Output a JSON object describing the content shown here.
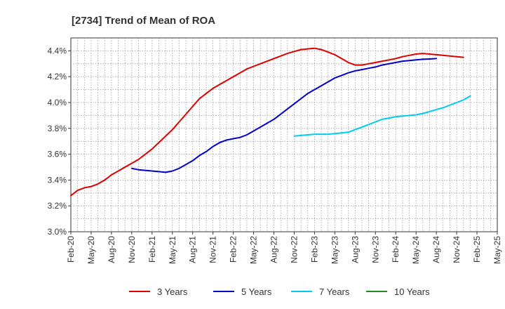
{
  "chart_data": {
    "type": "line",
    "title": "[2734]  Trend of Mean of ROA",
    "xlabel": "",
    "ylabel": "",
    "x_ticks": [
      "Feb-20",
      "May-20",
      "Aug-20",
      "Nov-20",
      "Feb-21",
      "May-21",
      "Aug-21",
      "Nov-21",
      "Feb-22",
      "May-22",
      "Aug-22",
      "Nov-22",
      "Feb-23",
      "May-23",
      "Aug-23",
      "Nov-23",
      "Feb-24",
      "May-24",
      "Aug-24",
      "Nov-24",
      "Feb-25",
      "May-25"
    ],
    "ylim": [
      3.0,
      4.5
    ],
    "y_ticks": [
      "3.0%",
      "3.2%",
      "3.4%",
      "3.6%",
      "3.8%",
      "4.0%",
      "4.2%",
      "4.4%"
    ],
    "y_tick_values": [
      3.0,
      3.2,
      3.4,
      3.6,
      3.8,
      4.0,
      4.2,
      4.4
    ],
    "grid": true,
    "legend_position": "bottom",
    "series": [
      {
        "name": "3 Years",
        "color": "#dd0000",
        "values": [
          3.28,
          3.32,
          3.34,
          3.35,
          3.37,
          3.4,
          3.44,
          3.47,
          3.5,
          3.53,
          3.56,
          3.6,
          3.64,
          3.69,
          3.74,
          3.79,
          3.85,
          3.91,
          3.97,
          4.03,
          4.07,
          4.11,
          4.14,
          4.17,
          4.2,
          4.23,
          4.26,
          4.28,
          4.3,
          4.32,
          4.34,
          4.36,
          4.38,
          4.395,
          4.41,
          4.415,
          4.42,
          4.41,
          4.39,
          4.37,
          4.34,
          4.31,
          4.29,
          4.29,
          4.3,
          4.31,
          4.32,
          4.33,
          4.34,
          4.355,
          4.365,
          4.375,
          4.38,
          4.375,
          4.37,
          4.365,
          4.36,
          4.355,
          4.35
        ]
      },
      {
        "name": "5 Years",
        "color": "#0000cc",
        "values": [
          null,
          null,
          null,
          null,
          null,
          null,
          null,
          null,
          null,
          3.49,
          3.48,
          3.475,
          3.47,
          3.465,
          3.46,
          3.47,
          3.49,
          3.52,
          3.55,
          3.59,
          3.62,
          3.66,
          3.69,
          3.71,
          3.72,
          3.73,
          3.75,
          3.78,
          3.81,
          3.84,
          3.87,
          3.91,
          3.95,
          3.99,
          4.03,
          4.07,
          4.1,
          4.13,
          4.16,
          4.19,
          4.21,
          4.23,
          4.245,
          4.255,
          4.265,
          4.275,
          4.29,
          4.3,
          4.31,
          4.32,
          4.325,
          4.33,
          4.335,
          4.337,
          4.34
        ]
      },
      {
        "name": "7 Years",
        "color": "#00ccee",
        "values": [
          null,
          null,
          null,
          null,
          null,
          null,
          null,
          null,
          null,
          null,
          null,
          null,
          null,
          null,
          null,
          null,
          null,
          null,
          null,
          null,
          null,
          null,
          null,
          null,
          null,
          null,
          null,
          null,
          null,
          null,
          null,
          null,
          null,
          3.74,
          3.745,
          3.75,
          3.755,
          3.755,
          3.755,
          3.76,
          3.765,
          3.77,
          3.79,
          3.81,
          3.83,
          3.85,
          3.87,
          3.88,
          3.89,
          3.895,
          3.9,
          3.905,
          3.915,
          3.93,
          3.945,
          3.96,
          3.98,
          4.0,
          4.02,
          4.05
        ]
      },
      {
        "name": "10 Years",
        "color": "#228b22",
        "values": []
      }
    ]
  }
}
